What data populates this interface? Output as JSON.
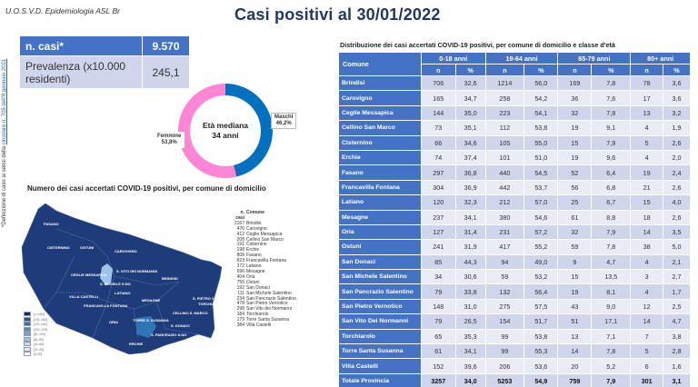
{
  "header": {
    "org": "U.O.S.V.D. Epidemiologia ASL Br",
    "title": "Casi positivi al 30/01/2022"
  },
  "side_note": {
    "text": "*Definizione di caso ai sensi della ",
    "link": "circolare n. 705 dell'8 gennaio 2021"
  },
  "kpi": {
    "cases_label": "n. casi*",
    "cases_value": "9.570",
    "prevalence_label": "Prevalenza (x10.000 residenti)",
    "prevalence_value": "245,1"
  },
  "donut": {
    "center_line1": "Età mediana",
    "center_line2": "34 anni",
    "male_label": "Maschi",
    "male_pct": "46,2%",
    "female_label": "Femmine",
    "female_pct": "53,8%",
    "colors": {
      "male": "#0070c0",
      "female": "#ff85d6"
    }
  },
  "chart_data": {
    "type": "pie",
    "title": "Età mediana 34 anni",
    "categories": [
      "Maschi",
      "Femmine"
    ],
    "values": [
      46.2,
      53.8
    ]
  },
  "map": {
    "title": "Numero dei casi accertati COVID-19 positivi, per comune di domicilio",
    "labels": [
      "FASANO",
      "CISTERNINO",
      "OSTUNI",
      "CAROVIGNO",
      "S. VITO DEI NORMANNI",
      "CEGLIE MESSAPICA",
      "S. MICHELE S.NO",
      "LATIANO",
      "BRINDISI",
      "VILLA CASTELLI",
      "FRANCAVILLA FONTANA",
      "MESAGNE",
      "S. PIETRO V.CO",
      "TORCHIAROLO",
      "CELLINO S. MARCO",
      "ORIA",
      "TORRE S. SUSANNA",
      "S. DONACI",
      "S. PANCRAZIO S.NO",
      "ERCHIE"
    ],
    "legend": [
      "[>=160]",
      "[141-160]",
      "[121-140]",
      "[101-120]",
      "[81-100]",
      "[61-80]",
      "[41-60]",
      "[21-40]",
      "[0-20]"
    ],
    "list_header": {
      "n": "n. casi",
      "comune": "Comune"
    },
    "list": [
      {
        "n": "2167",
        "comune": "Brindisi"
      },
      {
        "n": "476",
        "comune": "Carovigno"
      },
      {
        "n": "412",
        "comune": "Ceglie Messapica"
      },
      {
        "n": "208",
        "comune": "Cellino San Marco"
      },
      {
        "n": "191",
        "comune": "Cisternino"
      },
      {
        "n": "198",
        "comune": "Erchie"
      },
      {
        "n": "808",
        "comune": "Fasano"
      },
      {
        "n": "823",
        "comune": "Francavilla Fontana"
      },
      {
        "n": "372",
        "comune": "Latiano"
      },
      {
        "n": "696",
        "comune": "Mesagne"
      },
      {
        "n": "404",
        "comune": "Oria"
      },
      {
        "n": "755",
        "comune": "Ostuni"
      },
      {
        "n": "192",
        "comune": "San Donaci"
      },
      {
        "n": "111",
        "comune": "San Michele Salentino"
      },
      {
        "n": "234",
        "comune": "San Pancrazio Salentino"
      },
      {
        "n": "478",
        "comune": "San Pietro Vernotico"
      },
      {
        "n": "298",
        "comune": "San Vito dei Normanni"
      },
      {
        "n": "184",
        "comune": "Torchiarolo"
      },
      {
        "n": "179",
        "comune": "Torre Santa Susanna"
      },
      {
        "n": "384",
        "comune": "Villa Castelli"
      }
    ]
  },
  "table": {
    "title": "Distribuzione dei casi accertati COVID-19 positivi, per comune di domicilio e classe d'età",
    "comune_header": "Comune",
    "groups": [
      "0-18 anni",
      "19-64 anni",
      "65-79 anni",
      "80+ anni"
    ],
    "sub": [
      "n",
      "%"
    ],
    "rows": [
      {
        "name": "Brindisi",
        "v": [
          "706",
          "32,6",
          "1214",
          "56,0",
          "169",
          "7,8",
          "78",
          "3,6"
        ]
      },
      {
        "name": "Carovigno",
        "v": [
          "165",
          "34,7",
          "258",
          "54,2",
          "36",
          "7,6",
          "17",
          "3,6"
        ]
      },
      {
        "name": "Ceglie Messapica",
        "v": [
          "144",
          "35,0",
          "223",
          "54,1",
          "32",
          "7,8",
          "13",
          "3,2"
        ]
      },
      {
        "name": "Cellino San Marco",
        "v": [
          "73",
          "35,1",
          "112",
          "53,8",
          "19",
          "9,1",
          "4",
          "1,9"
        ]
      },
      {
        "name": "Cisternino",
        "v": [
          "66",
          "34,6",
          "105",
          "55,0",
          "15",
          "7,9",
          "5",
          "2,6"
        ]
      },
      {
        "name": "Erchie",
        "v": [
          "74",
          "37,4",
          "101",
          "51,0",
          "19",
          "9,6",
          "4",
          "2,0"
        ]
      },
      {
        "name": "Fasano",
        "v": [
          "297",
          "36,8",
          "440",
          "54,5",
          "52",
          "6,4",
          "19",
          "2,4"
        ]
      },
      {
        "name": "Francavilla Fontana",
        "v": [
          "304",
          "36,9",
          "442",
          "53,7",
          "56",
          "6,8",
          "21",
          "2,6"
        ]
      },
      {
        "name": "Latiano",
        "v": [
          "120",
          "32,3",
          "212",
          "57,0",
          "25",
          "6,7",
          "15",
          "4,0"
        ]
      },
      {
        "name": "Mesagne",
        "v": [
          "237",
          "34,1",
          "380",
          "54,6",
          "61",
          "8,8",
          "18",
          "2,6"
        ]
      },
      {
        "name": "Oria",
        "v": [
          "127",
          "31,4",
          "231",
          "57,2",
          "32",
          "7,9",
          "14",
          "3,5"
        ]
      },
      {
        "name": "Ostuni",
        "v": [
          "241",
          "31,9",
          "417",
          "55,2",
          "59",
          "7,8",
          "38",
          "5,0"
        ]
      },
      {
        "name": "San Donaci",
        "v": [
          "85",
          "44,3",
          "94",
          "49,0",
          "9",
          "4,7",
          "4",
          "2,1"
        ]
      },
      {
        "name": "San Michele Salentino",
        "v": [
          "34",
          "30,6",
          "59",
          "53,2",
          "15",
          "13,5",
          "3",
          "2,7"
        ]
      },
      {
        "name": "San Pancrazio Salentino",
        "v": [
          "79",
          "33,8",
          "132",
          "56,4",
          "19",
          "8,1",
          "4",
          "1,7"
        ]
      },
      {
        "name": "San Pietro Vernotico",
        "v": [
          "148",
          "31,0",
          "275",
          "57,5",
          "43",
          "9,0",
          "12",
          "2,5"
        ]
      },
      {
        "name": "San Vito Dei Normanni",
        "v": [
          "79",
          "26,5",
          "154",
          "51,7",
          "51",
          "17,1",
          "14",
          "4,7"
        ]
      },
      {
        "name": "Torchiarolo",
        "v": [
          "65",
          "35,3",
          "99",
          "53,8",
          "13",
          "7,1",
          "7",
          "3,8"
        ]
      },
      {
        "name": "Torre Santa Susanna",
        "v": [
          "61",
          "34,1",
          "99",
          "55,3",
          "14",
          "7,8",
          "5",
          "2,8"
        ]
      },
      {
        "name": "Villa Castelli",
        "v": [
          "152",
          "39,6",
          "206",
          "53,6",
          "20",
          "5,2",
          "6",
          "1,6"
        ]
      }
    ],
    "total": {
      "name": "Totale Provincia",
      "v": [
        "3257",
        "34,0",
        "5253",
        "54,9",
        "759",
        "7,9",
        "301",
        "3,1"
      ]
    }
  }
}
